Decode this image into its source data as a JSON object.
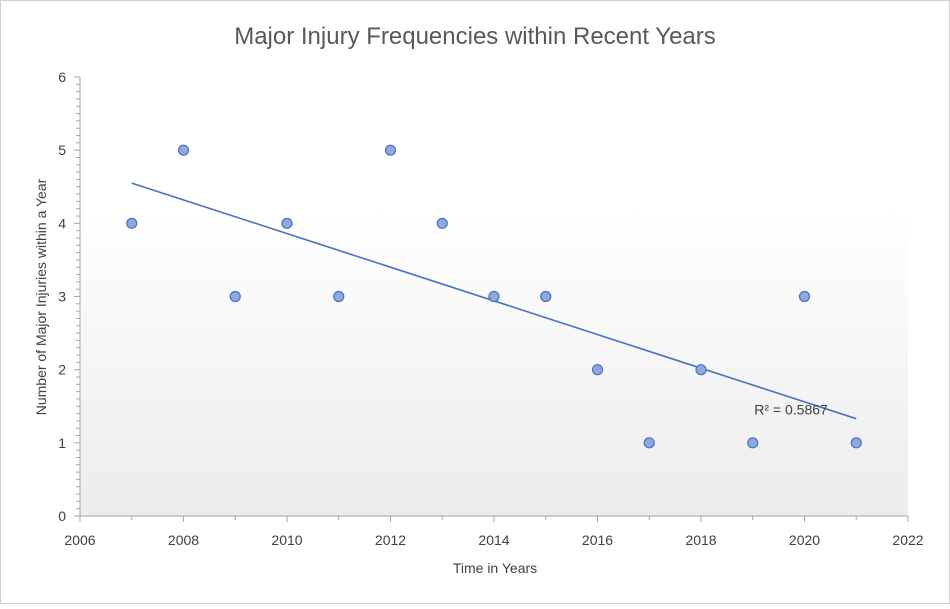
{
  "chart_data": {
    "type": "scatter",
    "title": "Major Injury Frequencies within Recent Years",
    "xlabel": "Time in Years",
    "ylabel": "Number of Major Injuries within a Year",
    "xlim": [
      2006,
      2022
    ],
    "ylim": [
      0,
      6
    ],
    "x_ticks": [
      "2006",
      "2008",
      "2010",
      "2012",
      "2014",
      "2016",
      "2018",
      "2020",
      "2022"
    ],
    "y_ticks": [
      "0",
      "1",
      "2",
      "3",
      "4",
      "5",
      "6"
    ],
    "grid": false,
    "legend": "none",
    "series": [
      {
        "x": [
          2007,
          2008,
          2009,
          2010,
          2011,
          2012,
          2013,
          2014,
          2015,
          2016,
          2017,
          2018,
          2019,
          2020,
          2021
        ],
        "y": [
          4,
          5,
          3,
          4,
          3,
          5,
          4,
          3,
          3,
          2,
          1,
          2,
          1,
          3,
          1
        ]
      }
    ],
    "trendline": {
      "type": "linear",
      "x": [
        2007,
        2021
      ],
      "y": [
        4.55,
        1.33
      ],
      "r_squared_label": "R² = 0.5867"
    },
    "colors": {
      "marker_fill": "#8EA9DB",
      "marker_stroke": "#4472C4",
      "trendline": "#4472C4",
      "title": "#595959",
      "text": "#404040",
      "axis": "#A6A6A6"
    }
  }
}
